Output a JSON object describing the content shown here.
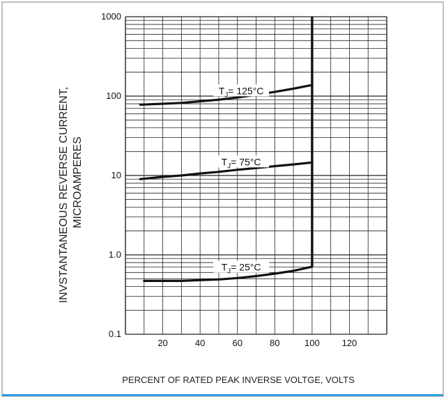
{
  "chart_data": {
    "type": "line",
    "title": "",
    "xlabel": "PERCENT OF RATED PEAK INVERSE VOLTGE, VOLTS",
    "ylabel": [
      "INVSTANTANEOUS REVERSE CURRENT,",
      "MICROAMPERES"
    ],
    "xlim": [
      0,
      140
    ],
    "ylim": [
      0.1,
      1000
    ],
    "yscale": "log",
    "x_ticks": [
      20,
      40,
      60,
      80,
      100,
      120
    ],
    "x_tick_labels": [
      "20",
      "40",
      "60",
      "80",
      "100",
      "120"
    ],
    "y_ticks": [
      0.1,
      1,
      10,
      100,
      1000
    ],
    "y_tick_labels": [
      "0.1",
      "1.0",
      "10",
      "100",
      "1000"
    ],
    "grid": true,
    "series": [
      {
        "name": "TJ= 125°C",
        "label_main": "T",
        "label_sub": "J",
        "label_rest": "= 125°C",
        "x": [
          8,
          20,
          30,
          40,
          50,
          60,
          70,
          80,
          90,
          100
        ],
        "y": [
          78,
          80,
          82,
          86,
          90,
          96,
          104,
          113,
          124,
          138
        ]
      },
      {
        "name": "TJ= 75°C",
        "label_main": "T",
        "label_sub": "J",
        "label_rest": "= 75°C",
        "x": [
          8,
          20,
          30,
          40,
          50,
          60,
          70,
          80,
          90,
          100
        ],
        "y": [
          9.0,
          9.6,
          10.0,
          10.6,
          11.1,
          11.8,
          12.4,
          13.1,
          13.8,
          14.6
        ]
      },
      {
        "name": "TJ= 25°C",
        "label_main": "T",
        "label_sub": "J",
        "label_rest": "= 25°C",
        "x": [
          10,
          20,
          30,
          40,
          50,
          60,
          70,
          80,
          90,
          100
        ],
        "y": [
          0.47,
          0.47,
          0.47,
          0.48,
          0.49,
          0.51,
          0.54,
          0.58,
          0.63,
          0.71
        ]
      }
    ],
    "breakdown_x": 100,
    "colors": {
      "line": "#111111",
      "grid": "#222222",
      "frame_border": "#aaaaaa",
      "bottom_accent": "#2a9de2"
    }
  }
}
